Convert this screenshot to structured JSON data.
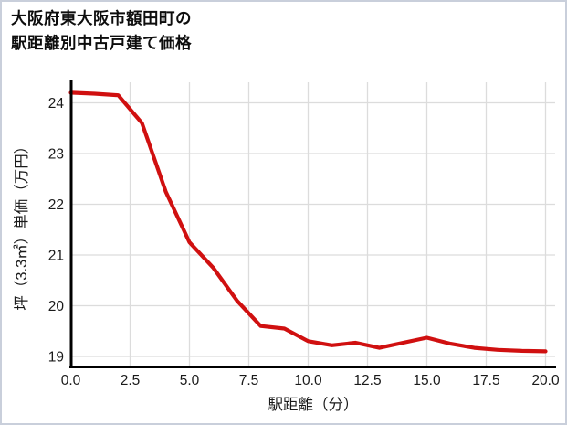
{
  "title": {
    "line1": "大阪府東大阪市額田町の",
    "line2": "駅距離別中古戸建て価格"
  },
  "chart_data": {
    "type": "line",
    "title": "大阪府東大阪市額田町の駅距離別中古戸建て価格",
    "xlabel": "駅距離（分）",
    "ylabel": "坪（3.3㎡）単価（万円）",
    "x": [
      0,
      1,
      2,
      3,
      4,
      5,
      6,
      7,
      8,
      9,
      10,
      11,
      12,
      13,
      14,
      15,
      16,
      17,
      18,
      19,
      20
    ],
    "y": [
      24.2,
      24.18,
      24.15,
      23.6,
      22.25,
      21.25,
      20.75,
      20.1,
      19.6,
      19.55,
      19.3,
      19.22,
      19.27,
      19.17,
      19.27,
      19.37,
      19.25,
      19.17,
      19.13,
      19.11,
      19.1
    ],
    "xlim": [
      0,
      20
    ],
    "ylim": [
      18.8,
      24.4
    ],
    "xticks": {
      "values": [
        0,
        2.5,
        5,
        7.5,
        10,
        12.5,
        15,
        17.5,
        20
      ],
      "labels": [
        "0.0",
        "2.5",
        "5.0",
        "7.5",
        "10.0",
        "12.5",
        "15.0",
        "17.5",
        "20.0"
      ]
    },
    "yticks": {
      "values": [
        19,
        20,
        21,
        22,
        23,
        24
      ],
      "labels": [
        "19",
        "20",
        "21",
        "22",
        "23",
        "24"
      ]
    },
    "grid": true,
    "legend": "none",
    "line_color": "#d01010",
    "grid_color": "#dcdcdc",
    "spine_color": "#000000",
    "text_color": "#1a1a1a"
  }
}
